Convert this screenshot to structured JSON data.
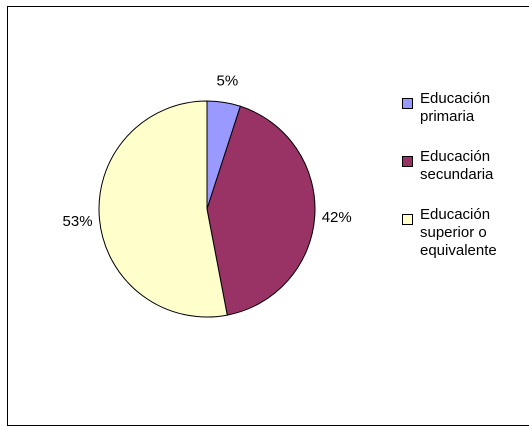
{
  "chart_data": {
    "type": "pie",
    "categories": [
      "Educación primaria",
      "Educación secundaria",
      "Educación superior o equivalente"
    ],
    "values": [
      5,
      42,
      53
    ],
    "labels": [
      "5%",
      "42%",
      "53%"
    ],
    "colors": [
      "#9999FF",
      "#993366",
      "#FFFFCC"
    ],
    "legend_position": "right",
    "legend_entries": [
      "Educación\nprimaria",
      "Educación\nsecundaria",
      "Educación\nsuperior o\nequivalente"
    ]
  }
}
